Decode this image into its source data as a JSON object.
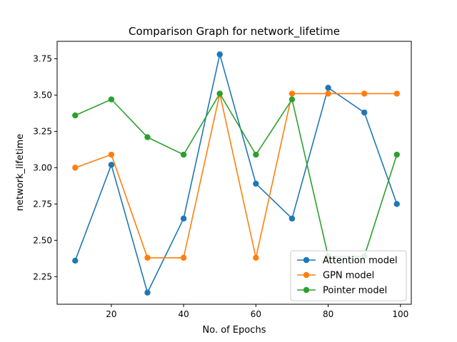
{
  "chart_data": {
    "type": "line",
    "title": "Comparison Graph for network_lifetime",
    "xlabel": "No. of Epochs",
    "ylabel": "network_lifetime",
    "x": [
      10,
      20,
      30,
      40,
      50,
      60,
      70,
      80,
      90,
      99
    ],
    "xlim": [
      5,
      103
    ],
    "ylim": [
      2.06,
      3.87
    ],
    "xticks": [
      "20",
      "40",
      "60",
      "80",
      "100"
    ],
    "yticks": [
      "2.25",
      "2.50",
      "2.75",
      "3.00",
      "3.25",
      "3.50",
      "3.75"
    ],
    "grid": false,
    "legend_position": "lower-right",
    "series": [
      {
        "name": "Attention model",
        "color": "#1f77b4",
        "values": [
          2.36,
          3.02,
          2.14,
          2.65,
          3.78,
          2.89,
          2.65,
          3.55,
          3.38,
          2.75
        ]
      },
      {
        "name": "GPN model",
        "color": "#ff7f0e",
        "values": [
          3.0,
          3.09,
          2.38,
          2.38,
          3.51,
          2.38,
          3.51,
          3.51,
          3.51,
          3.51
        ]
      },
      {
        "name": "Pointer model",
        "color": "#2ca02c",
        "values": [
          3.36,
          3.47,
          3.21,
          3.09,
          3.51,
          3.09,
          3.47,
          2.39,
          2.39,
          3.09
        ]
      }
    ]
  }
}
